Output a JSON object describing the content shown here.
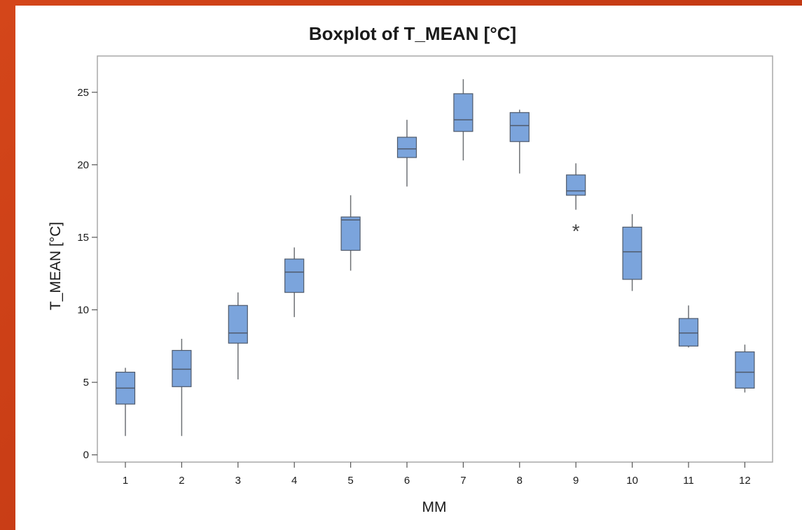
{
  "chart_data": {
    "type": "boxplot",
    "title": "Boxplot of T_MEAN [°C]",
    "xlabel": "MM",
    "ylabel": "T_MEAN [°C]",
    "ylim": [
      -0.5,
      27.5
    ],
    "yticks": [
      0,
      5,
      10,
      15,
      20,
      25
    ],
    "categories": [
      "1",
      "2",
      "3",
      "4",
      "5",
      "6",
      "7",
      "8",
      "9",
      "10",
      "11",
      "12"
    ],
    "boxes": [
      {
        "category": "1",
        "whisker_low": 1.3,
        "q1": 3.5,
        "median": 4.6,
        "q3": 5.7,
        "whisker_high": 6.0,
        "outliers": []
      },
      {
        "category": "2",
        "whisker_low": 1.3,
        "q1": 4.7,
        "median": 5.9,
        "q3": 7.2,
        "whisker_high": 8.0,
        "outliers": []
      },
      {
        "category": "3",
        "whisker_low": 5.2,
        "q1": 7.7,
        "median": 8.4,
        "q3": 10.3,
        "whisker_high": 11.2,
        "outliers": []
      },
      {
        "category": "4",
        "whisker_low": 9.5,
        "q1": 11.2,
        "median": 12.6,
        "q3": 13.5,
        "whisker_high": 14.3,
        "outliers": []
      },
      {
        "category": "5",
        "whisker_low": 12.7,
        "q1": 14.1,
        "median": 16.2,
        "q3": 16.4,
        "whisker_high": 17.9,
        "outliers": []
      },
      {
        "category": "6",
        "whisker_low": 18.5,
        "q1": 20.5,
        "median": 21.1,
        "q3": 21.9,
        "whisker_high": 23.1,
        "outliers": []
      },
      {
        "category": "7",
        "whisker_low": 20.3,
        "q1": 22.3,
        "median": 23.1,
        "q3": 24.9,
        "whisker_high": 25.9,
        "outliers": []
      },
      {
        "category": "8",
        "whisker_low": 19.4,
        "q1": 21.6,
        "median": 22.7,
        "q3": 23.6,
        "whisker_high": 23.8,
        "outliers": []
      },
      {
        "category": "9",
        "whisker_low": 16.9,
        "q1": 17.9,
        "median": 18.2,
        "q3": 19.3,
        "whisker_high": 20.1,
        "outliers": [
          15.6
        ]
      },
      {
        "category": "10",
        "whisker_low": 11.3,
        "q1": 12.1,
        "median": 14.0,
        "q3": 15.7,
        "whisker_high": 16.6,
        "outliers": []
      },
      {
        "category": "11",
        "whisker_low": 7.4,
        "q1": 7.5,
        "median": 8.4,
        "q3": 9.4,
        "whisker_high": 10.3,
        "outliers": []
      },
      {
        "category": "12",
        "whisker_low": 4.3,
        "q1": 4.6,
        "median": 5.7,
        "q3": 7.1,
        "whisker_high": 7.6,
        "outliers": []
      }
    ],
    "box_fill": "#7ba4dc",
    "box_stroke": "#4f5a6b",
    "whisker_color": "#6e7175",
    "frame_color": "#a9a9a9",
    "grid": false,
    "legend": "none",
    "outlier_symbol": "*"
  }
}
